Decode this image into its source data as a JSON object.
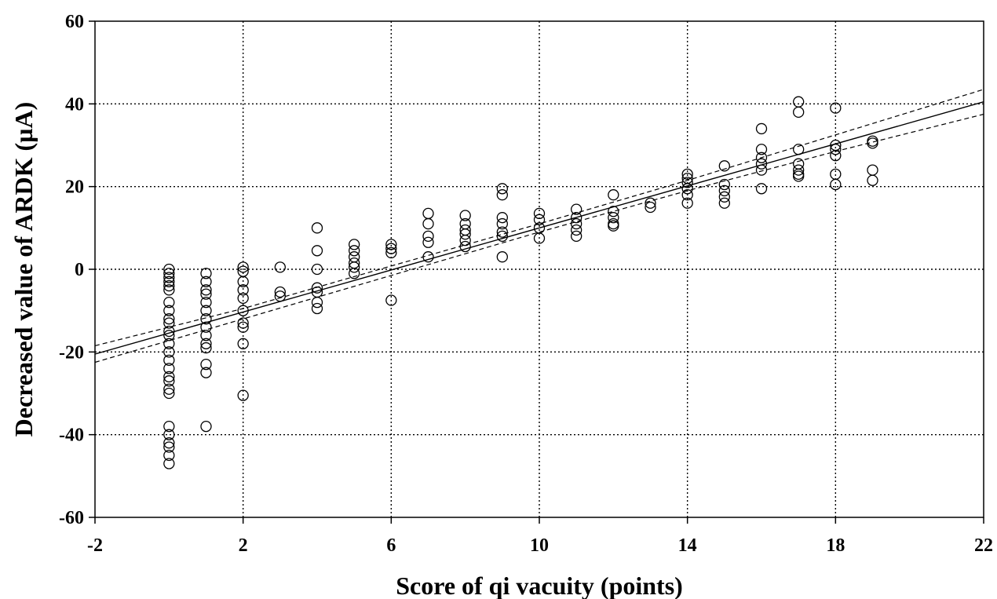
{
  "chart_data": {
    "type": "scatter",
    "xlabel": "Score of qi vacuity (points)",
    "ylabel": "Decreased value of ARDK (µA)",
    "xlim": [
      -2,
      22
    ],
    "ylim": [
      -60,
      60
    ],
    "xticks": [
      -2,
      2,
      6,
      10,
      14,
      18,
      22
    ],
    "yticks": [
      -60,
      -40,
      -20,
      0,
      20,
      40,
      60
    ],
    "xtick_labels": [
      "-2",
      "2",
      "6",
      "10",
      "14",
      "18",
      "22"
    ],
    "ytick_labels": [
      "-60",
      "-40",
      "-20",
      "0",
      "20",
      "40",
      "60"
    ],
    "grid": true,
    "series": [
      {
        "kind": "points",
        "points": [
          [
            0,
            0
          ],
          [
            0,
            -1
          ],
          [
            0,
            -2
          ],
          [
            0,
            -3
          ],
          [
            0,
            -4
          ],
          [
            0,
            -5
          ],
          [
            0,
            -8
          ],
          [
            0,
            -10
          ],
          [
            0,
            -12
          ],
          [
            0,
            -13
          ],
          [
            0,
            -15
          ],
          [
            0,
            -16
          ],
          [
            0,
            -18
          ],
          [
            0,
            -20
          ],
          [
            0,
            -22
          ],
          [
            0,
            -24
          ],
          [
            0,
            -26
          ],
          [
            0,
            -27
          ],
          [
            0,
            -29
          ],
          [
            0,
            -30
          ],
          [
            0,
            -38
          ],
          [
            0,
            -40
          ],
          [
            0,
            -42
          ],
          [
            0,
            -43
          ],
          [
            0,
            -45
          ],
          [
            0,
            -47
          ],
          [
            1,
            -1
          ],
          [
            1,
            -3
          ],
          [
            1,
            -5
          ],
          [
            1,
            -6
          ],
          [
            1,
            -8
          ],
          [
            1,
            -10
          ],
          [
            1,
            -12
          ],
          [
            1,
            -14
          ],
          [
            1,
            -16
          ],
          [
            1,
            -18
          ],
          [
            1,
            -19
          ],
          [
            1,
            -23
          ],
          [
            1,
            -25
          ],
          [
            1,
            -38
          ],
          [
            2,
            0.5
          ],
          [
            2,
            -0.5
          ],
          [
            2,
            -3
          ],
          [
            2,
            -5
          ],
          [
            2,
            -7
          ],
          [
            2,
            -10
          ],
          [
            2,
            -13
          ],
          [
            2,
            -14
          ],
          [
            2,
            -18
          ],
          [
            2,
            -30.5
          ],
          [
            3,
            0.5
          ],
          [
            3,
            -5.5
          ],
          [
            3,
            -6.5
          ],
          [
            4,
            10
          ],
          [
            4,
            4.5
          ],
          [
            4,
            0
          ],
          [
            4,
            -4.5
          ],
          [
            4,
            -5.5
          ],
          [
            4,
            -8
          ],
          [
            4,
            -9.5
          ],
          [
            5,
            6
          ],
          [
            5,
            4.5
          ],
          [
            5,
            3
          ],
          [
            5,
            1.5
          ],
          [
            5,
            0.5
          ],
          [
            5,
            -1
          ],
          [
            6,
            6
          ],
          [
            6,
            5
          ],
          [
            6,
            4
          ],
          [
            6,
            -7.5
          ],
          [
            7,
            13.5
          ],
          [
            7,
            11
          ],
          [
            7,
            8
          ],
          [
            7,
            6.5
          ],
          [
            7,
            3
          ],
          [
            8,
            13
          ],
          [
            8,
            11
          ],
          [
            8,
            9.5
          ],
          [
            8,
            8.5
          ],
          [
            8,
            7
          ],
          [
            8,
            5.5
          ],
          [
            9,
            19.5
          ],
          [
            9,
            18
          ],
          [
            9,
            12.5
          ],
          [
            9,
            11
          ],
          [
            9,
            9
          ],
          [
            9,
            8
          ],
          [
            9,
            3
          ],
          [
            10,
            13.5
          ],
          [
            10,
            12
          ],
          [
            10,
            10
          ],
          [
            10,
            7.5
          ],
          [
            11,
            14.5
          ],
          [
            11,
            12.5
          ],
          [
            11,
            11
          ],
          [
            11,
            9.5
          ],
          [
            11,
            8
          ],
          [
            12,
            18
          ],
          [
            12,
            14
          ],
          [
            12,
            12.5
          ],
          [
            12,
            11
          ],
          [
            12,
            10.5
          ],
          [
            13,
            16
          ],
          [
            13,
            15
          ],
          [
            14,
            23
          ],
          [
            14,
            22
          ],
          [
            14,
            21
          ],
          [
            14,
            19.5
          ],
          [
            14,
            18
          ],
          [
            14,
            16
          ],
          [
            15,
            25
          ],
          [
            15,
            20.5
          ],
          [
            15,
            19
          ],
          [
            15,
            17.5
          ],
          [
            15,
            16
          ],
          [
            16,
            34
          ],
          [
            16,
            29
          ],
          [
            16,
            27
          ],
          [
            16,
            25.5
          ],
          [
            16,
            24
          ],
          [
            16,
            19.5
          ],
          [
            17,
            40.5
          ],
          [
            17,
            38
          ],
          [
            17,
            29
          ],
          [
            17,
            25.5
          ],
          [
            17,
            24
          ],
          [
            17,
            23
          ],
          [
            17,
            22.5
          ],
          [
            18,
            39
          ],
          [
            18,
            30
          ],
          [
            18,
            29
          ],
          [
            18,
            27.5
          ],
          [
            18,
            23
          ],
          [
            18,
            20.5
          ],
          [
            19,
            31
          ],
          [
            19,
            30.5
          ],
          [
            19,
            24
          ],
          [
            19,
            21.5
          ]
        ]
      },
      {
        "kind": "fit",
        "points": [
          [
            -2,
            -20.5
          ],
          [
            22,
            40.5
          ]
        ]
      },
      {
        "kind": "confidence-upper",
        "points": [
          [
            -2,
            -18.5
          ],
          [
            2,
            -9.5
          ],
          [
            6,
            0.8
          ],
          [
            10,
            11
          ],
          [
            14,
            21.5
          ],
          [
            18,
            32.5
          ],
          [
            22,
            43.5
          ]
        ]
      },
      {
        "kind": "confidence-lower",
        "points": [
          [
            -2,
            -22.5
          ],
          [
            2,
            -12
          ],
          [
            6,
            -1.5
          ],
          [
            10,
            9
          ],
          [
            14,
            19
          ],
          [
            18,
            28.5
          ],
          [
            22,
            37.5
          ]
        ]
      }
    ]
  }
}
